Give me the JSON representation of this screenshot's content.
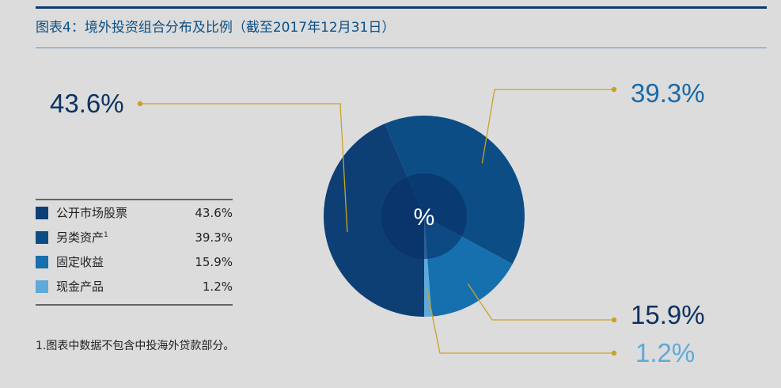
{
  "title": "图表4：境外投资组合分布及比例（截至2017年12月31日）",
  "note": "1.图表中数据不包含中投海外贷款部分。",
  "center_label": "%",
  "chart_data": {
    "type": "pie",
    "title": "图表4：境外投资组合分布及比例（截至2017年12月31日）",
    "unit": "%",
    "legend_position": "left",
    "slices": [
      {
        "name": "公开市场股票",
        "value": 43.6,
        "label": "43.6%",
        "color": "#0d3f75"
      },
      {
        "name": "另类资产",
        "footnote": "1",
        "value": 39.3,
        "label": "39.3%",
        "color": "#0c4d85"
      },
      {
        "name": "固定收益",
        "value": 15.9,
        "label": "15.9%",
        "color": "#1570ad"
      },
      {
        "name": "现金产品",
        "value": 1.2,
        "label": "1.2%",
        "color": "#5ea9d9"
      }
    ],
    "label_colors": [
      "#0d3260",
      "#1a6aa8",
      "#0d3260",
      "#5ea9d9"
    ],
    "leader_color": "#c9a227"
  }
}
